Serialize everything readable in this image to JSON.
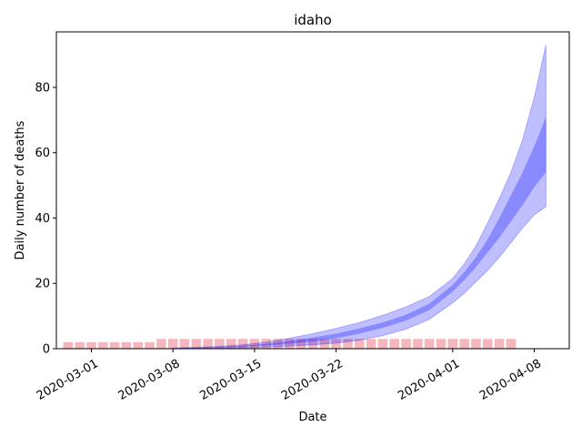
{
  "chart_data": {
    "type": "area",
    "title": "idaho",
    "xlabel": "Date",
    "ylabel": "Daily number of deaths",
    "x_start": "2020-02-28",
    "x_end": "2020-04-09",
    "xlim": [
      "2020-02-27",
      "2020-04-11"
    ],
    "ylim": [
      0,
      97
    ],
    "x_ticks": [
      "2020-03-01",
      "2020-03-08",
      "2020-03-15",
      "2020-03-22",
      "2020-04-01",
      "2020-04-08"
    ],
    "y_ticks": [
      0,
      20,
      40,
      60,
      80
    ],
    "grid": false,
    "colors": {
      "bars": "#f4a9b2",
      "band_outer": "#0000ff",
      "band_inner": "#0000ff"
    },
    "bars": {
      "dates": [
        "2020-02-28",
        "2020-02-29",
        "2020-03-01",
        "2020-03-02",
        "2020-03-03",
        "2020-03-04",
        "2020-03-05",
        "2020-03-06",
        "2020-03-07",
        "2020-03-08",
        "2020-03-09",
        "2020-03-10",
        "2020-03-11",
        "2020-03-12",
        "2020-03-13",
        "2020-03-14",
        "2020-03-15",
        "2020-03-16",
        "2020-03-17",
        "2020-03-18",
        "2020-03-19",
        "2020-03-20",
        "2020-03-21",
        "2020-03-22",
        "2020-03-23",
        "2020-03-24",
        "2020-03-25",
        "2020-03-26",
        "2020-03-27",
        "2020-03-28",
        "2020-03-29",
        "2020-03-30",
        "2020-03-31",
        "2020-04-01",
        "2020-04-02",
        "2020-04-03",
        "2020-04-04",
        "2020-04-05",
        "2020-04-06"
      ],
      "values": [
        2,
        2,
        2,
        2,
        2,
        2,
        2,
        2,
        3,
        3,
        3,
        3,
        3,
        3,
        3,
        3,
        3,
        3,
        3,
        3,
        3,
        3,
        3,
        3,
        3,
        3,
        3,
        3,
        3,
        3,
        3,
        3,
        3,
        3,
        3,
        3,
        3,
        3,
        3
      ]
    },
    "series": [
      {
        "dates": [
          "2020-03-08",
          "2020-03-10",
          "2020-03-12",
          "2020-03-14",
          "2020-03-16",
          "2020-03-18",
          "2020-03-20",
          "2020-03-22",
          "2020-03-24",
          "2020-03-26",
          "2020-03-28",
          "2020-03-30",
          "2020-04-01",
          "2020-04-02",
          "2020-04-03",
          "2020-04-04",
          "2020-04-05",
          "2020-04-06",
          "2020-04-07",
          "2020-04-08",
          "2020-04-09"
        ],
        "lower_95": [
          0.0,
          0.1,
          0.2,
          0.3,
          0.5,
          0.8,
          1.2,
          1.7,
          2.6,
          4.0,
          6.0,
          9.0,
          14.0,
          17.0,
          20.5,
          24.0,
          28.0,
          32.5,
          37.0,
          41.0,
          43.5
        ],
        "upper_95": [
          0.2,
          0.4,
          0.7,
          1.2,
          2.0,
          3.2,
          4.6,
          6.2,
          8.0,
          10.2,
          12.8,
          16.0,
          21.5,
          26.0,
          31.5,
          38.5,
          46.0,
          54.0,
          64.0,
          77.0,
          93.0
        ],
        "lower_50": [
          0.05,
          0.2,
          0.35,
          0.6,
          1.0,
          1.5,
          2.2,
          3.2,
          4.6,
          6.4,
          8.6,
          11.8,
          17.5,
          21.0,
          25.0,
          29.5,
          34.0,
          39.0,
          44.0,
          49.5,
          54.0
        ],
        "upper_50": [
          0.1,
          0.3,
          0.55,
          0.9,
          1.5,
          2.4,
          3.4,
          4.6,
          6.2,
          8.0,
          10.4,
          13.8,
          19.5,
          23.5,
          28.0,
          33.5,
          40.0,
          47.0,
          54.0,
          62.0,
          71.0
        ]
      }
    ]
  }
}
